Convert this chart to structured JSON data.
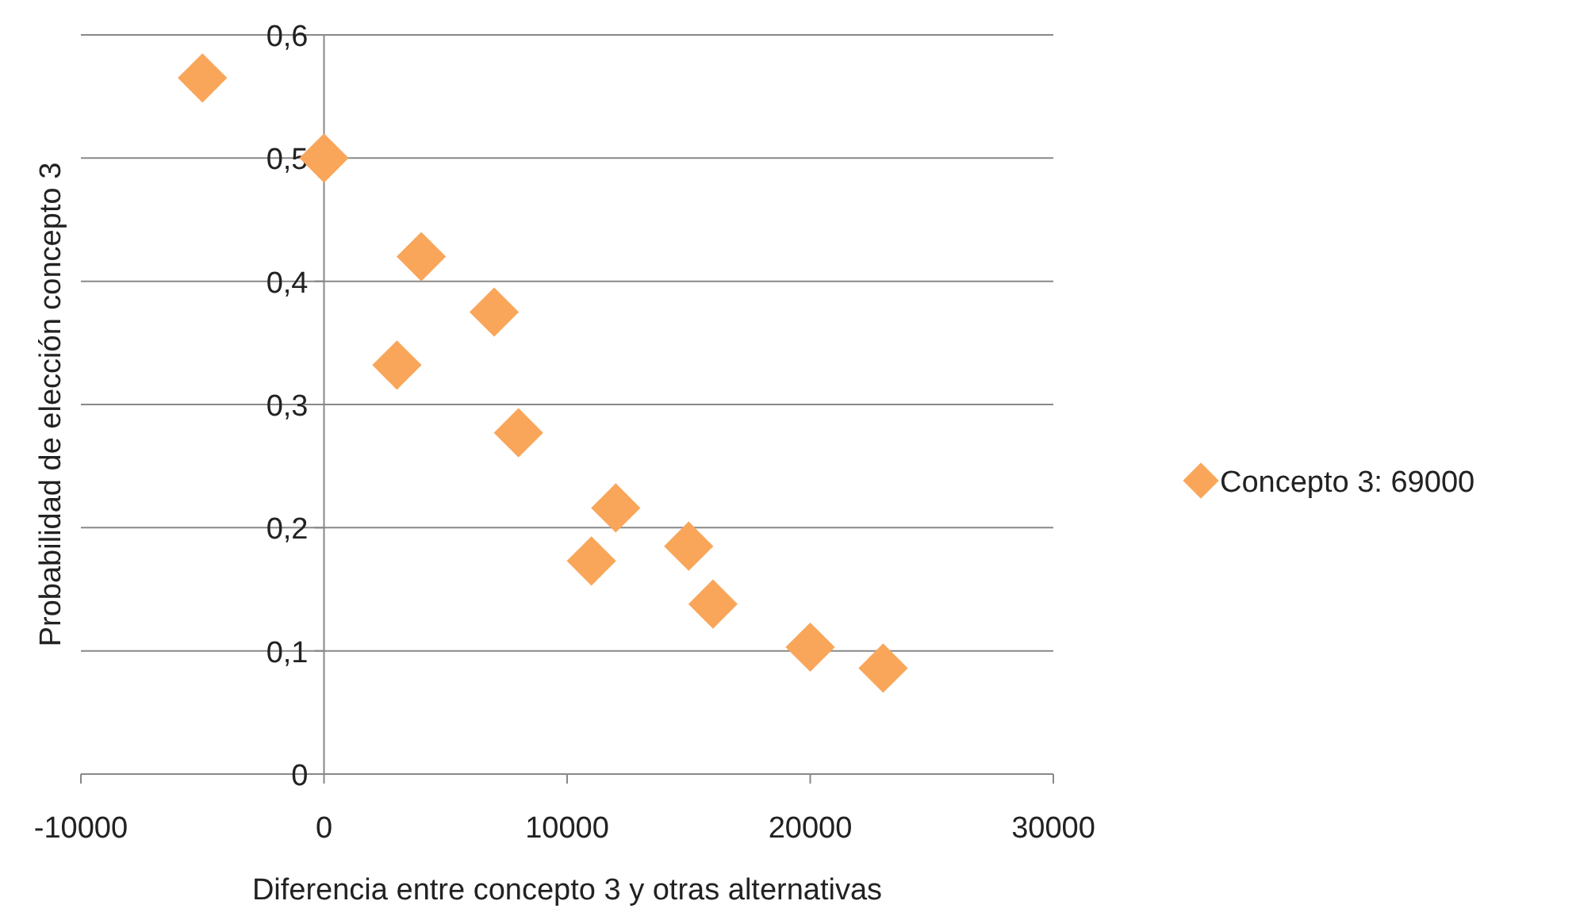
{
  "chart_data": {
    "type": "scatter",
    "xlabel": "Diferencia entre concepto 3 y otras alternativas",
    "ylabel": "Probabilidad de elección concepto 3",
    "x": [
      -5000,
      0,
      4000,
      7000,
      3000,
      8000,
      12000,
      11000,
      15000,
      16000,
      20000,
      23000
    ],
    "series": [
      {
        "name": "Concepto 3: 69000",
        "color": "#f9a65a",
        "values": [
          0.565,
          0.5,
          0.42,
          0.375,
          0.332,
          0.277,
          0.216,
          0.173,
          0.185,
          0.138,
          0.103,
          0.086
        ]
      }
    ],
    "xlim": [
      -10000,
      30000
    ],
    "xticks": [
      -10000,
      0,
      10000,
      20000,
      30000
    ],
    "ylim": [
      0,
      0.6
    ],
    "yticks": [
      0,
      {
        "value": 0.1,
        "label": "0,1"
      },
      {
        "value": 0.2,
        "label": "0,2"
      },
      {
        "value": 0.3,
        "label": "0,3"
      },
      {
        "value": 0.4,
        "label": "0,4"
      },
      {
        "value": 0.5,
        "label": "0,5"
      },
      {
        "value": 0.6,
        "label": "0,6"
      }
    ],
    "grid": "y",
    "legend": "right",
    "marker": "diamond"
  }
}
